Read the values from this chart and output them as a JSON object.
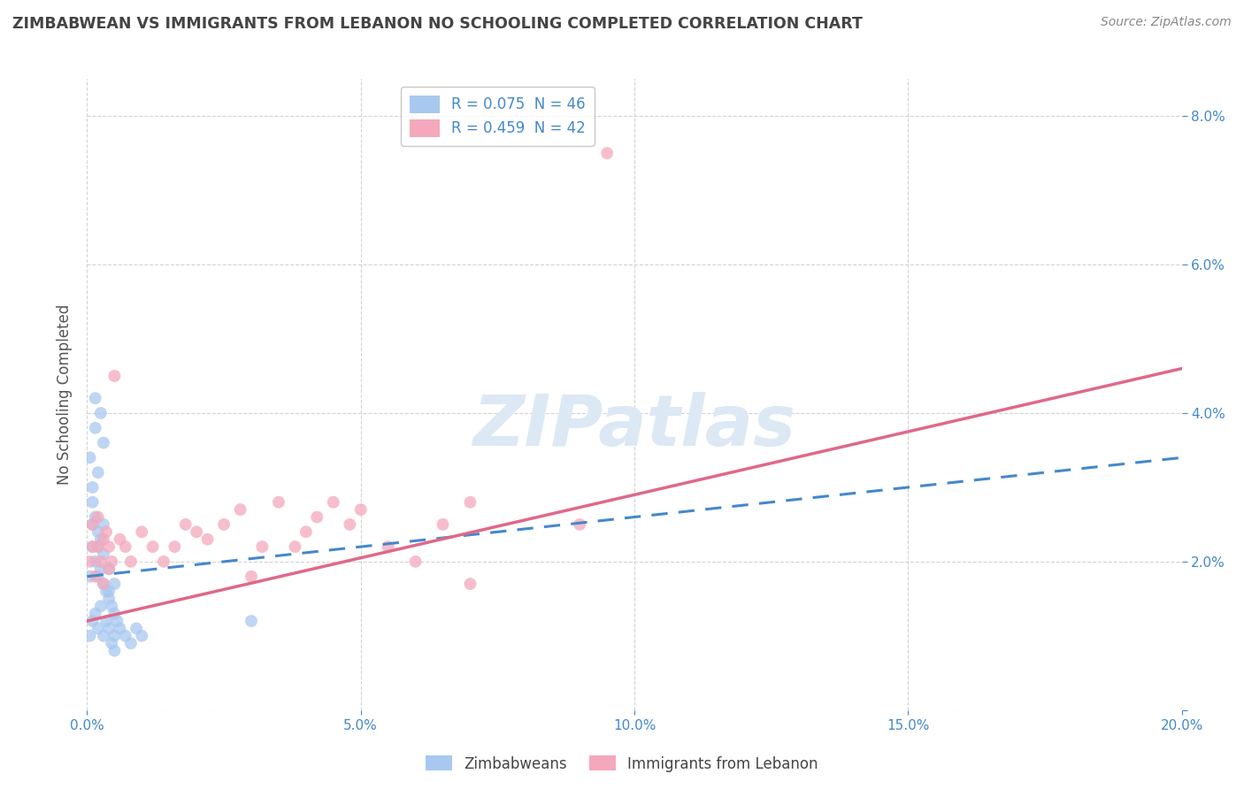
{
  "title": "ZIMBABWEAN VS IMMIGRANTS FROM LEBANON NO SCHOOLING COMPLETED CORRELATION CHART",
  "source": "Source: ZipAtlas.com",
  "ylabel": "No Schooling Completed",
  "xlim": [
    0.0,
    0.2
  ],
  "ylim": [
    0.0,
    0.085
  ],
  "xticks": [
    0.0,
    0.05,
    0.1,
    0.15,
    0.2
  ],
  "yticks": [
    0.0,
    0.02,
    0.04,
    0.06,
    0.08
  ],
  "xtick_labels": [
    "0.0%",
    "5.0%",
    "10.0%",
    "15.0%",
    "20.0%"
  ],
  "ytick_labels": [
    "",
    "2.0%",
    "4.0%",
    "6.0%",
    "8.0%"
  ],
  "legend_entries": [
    {
      "label": "R = 0.075  N = 46",
      "color": "#a8c8f0"
    },
    {
      "label": "R = 0.459  N = 42",
      "color": "#f4a8bc"
    }
  ],
  "zim_color": "#a8c8f0",
  "leb_color": "#f4a8bc",
  "zim_line_color": "#4488cc",
  "leb_line_color": "#e06888",
  "background_color": "#ffffff",
  "grid_color": "#c8c8c8",
  "title_color": "#444444",
  "tick_label_color": "#4488cc",
  "ylabel_color": "#555555",
  "watermark_color": "#dce8f4",
  "watermark": "ZIPatlas",
  "zim_line_start_y": 0.018,
  "zim_line_end_y": 0.034,
  "leb_line_start_y": 0.012,
  "leb_line_end_y": 0.046,
  "zim_scatter_x": [
    0.0005,
    0.001,
    0.001,
    0.0015,
    0.002,
    0.002,
    0.0025,
    0.003,
    0.003,
    0.0035,
    0.004,
    0.004,
    0.0045,
    0.005,
    0.005,
    0.001,
    0.0015,
    0.002,
    0.0025,
    0.003,
    0.0005,
    0.001,
    0.0015,
    0.002,
    0.0025,
    0.003,
    0.0035,
    0.004,
    0.0045,
    0.005,
    0.0055,
    0.006,
    0.007,
    0.008,
    0.009,
    0.01,
    0.0005,
    0.001,
    0.0015,
    0.002,
    0.0025,
    0.003,
    0.004,
    0.005,
    0.0015,
    0.03
  ],
  "zim_scatter_y": [
    0.018,
    0.022,
    0.025,
    0.02,
    0.018,
    0.022,
    0.019,
    0.017,
    0.021,
    0.016,
    0.015,
    0.019,
    0.014,
    0.013,
    0.017,
    0.028,
    0.026,
    0.024,
    0.023,
    0.025,
    0.01,
    0.012,
    0.013,
    0.011,
    0.014,
    0.01,
    0.012,
    0.011,
    0.009,
    0.01,
    0.012,
    0.011,
    0.01,
    0.009,
    0.011,
    0.01,
    0.034,
    0.03,
    0.038,
    0.032,
    0.04,
    0.036,
    0.016,
    0.008,
    0.042,
    0.012
  ],
  "leb_scatter_x": [
    0.0005,
    0.001,
    0.001,
    0.0015,
    0.002,
    0.002,
    0.0025,
    0.003,
    0.003,
    0.0035,
    0.004,
    0.004,
    0.0045,
    0.005,
    0.006,
    0.007,
    0.008,
    0.01,
    0.012,
    0.014,
    0.016,
    0.018,
    0.02,
    0.022,
    0.025,
    0.028,
    0.03,
    0.032,
    0.035,
    0.038,
    0.04,
    0.042,
    0.045,
    0.048,
    0.05,
    0.055,
    0.06,
    0.065,
    0.07,
    0.09,
    0.095,
    0.07
  ],
  "leb_scatter_y": [
    0.02,
    0.025,
    0.022,
    0.018,
    0.022,
    0.026,
    0.02,
    0.017,
    0.023,
    0.024,
    0.019,
    0.022,
    0.02,
    0.045,
    0.023,
    0.022,
    0.02,
    0.024,
    0.022,
    0.02,
    0.022,
    0.025,
    0.024,
    0.023,
    0.025,
    0.027,
    0.018,
    0.022,
    0.028,
    0.022,
    0.024,
    0.026,
    0.028,
    0.025,
    0.027,
    0.022,
    0.02,
    0.025,
    0.028,
    0.025,
    0.075,
    0.017
  ]
}
